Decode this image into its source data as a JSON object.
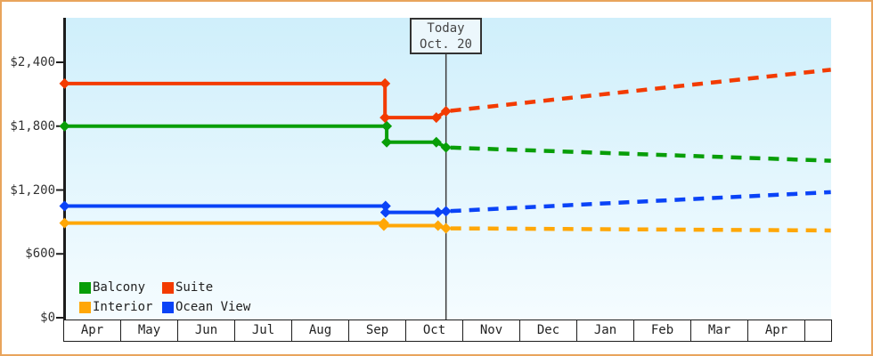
{
  "frame": {
    "border_color": "#e9a45c",
    "bg": "#ffffff"
  },
  "today_box": {
    "line1": "Today",
    "line2": "Oct. 20"
  },
  "legend": {
    "items": [
      {
        "label": "Balcony",
        "color": "#089e08"
      },
      {
        "label": "Suite",
        "color": "#f33b00"
      },
      {
        "label": "Interior",
        "color": "#ffa707"
      },
      {
        "label": "Ocean View",
        "color": "#0a43f7"
      }
    ]
  },
  "chart_data": {
    "type": "line",
    "title": "",
    "x_unit": "months since April 1; today marker at m=6.69 (Oct. 20)",
    "x_categories": [
      "Apr",
      "May",
      "Jun",
      "Jul",
      "Aug",
      "Sep",
      "Oct",
      "Nov",
      "Dec",
      "Jan",
      "Feb",
      "Mar",
      "Apr"
    ],
    "y_ticks": [
      {
        "label": "$0",
        "value": 0
      },
      {
        "label": "$600",
        "value": 600
      },
      {
        "label": "$1,200",
        "value": 1200
      },
      {
        "label": "$1,800",
        "value": 1800
      },
      {
        "label": "$2,400",
        "value": 2400
      }
    ],
    "y_range": [
      0,
      2850
    ],
    "grid": false,
    "legend_position": "bottom-left-inside",
    "plot_bg_top": "#cfeffb",
    "plot_bg_bottom": "#f5fcff",
    "today": {
      "m": 6.69,
      "date_label": "Oct. 20"
    },
    "series": [
      {
        "name": "Interior",
        "color": "#ffa707",
        "solid": [
          [
            0,
            890
          ],
          [
            5.6,
            890
          ],
          [
            5.6,
            865
          ],
          [
            6.55,
            865
          ],
          [
            6.69,
            840
          ]
        ],
        "forecast": [
          [
            6.69,
            840
          ],
          [
            13.44,
            820
          ]
        ]
      },
      {
        "name": "Ocean View",
        "color": "#0a43f7",
        "solid": [
          [
            0,
            1050
          ],
          [
            5.63,
            1050
          ],
          [
            5.63,
            990
          ],
          [
            6.55,
            990
          ],
          [
            6.69,
            1000
          ]
        ],
        "forecast": [
          [
            6.69,
            1000
          ],
          [
            13.44,
            1180
          ]
        ]
      },
      {
        "name": "Balcony",
        "color": "#089e08",
        "solid": [
          [
            0,
            1800
          ],
          [
            5.65,
            1800
          ],
          [
            5.65,
            1650
          ],
          [
            6.52,
            1650
          ],
          [
            6.69,
            1600
          ]
        ],
        "forecast": [
          [
            6.69,
            1600
          ],
          [
            13.44,
            1475
          ]
        ]
      },
      {
        "name": "Suite",
        "color": "#f33b00",
        "solid": [
          [
            0,
            2200
          ],
          [
            5.62,
            2200
          ],
          [
            5.62,
            1880
          ],
          [
            6.52,
            1880
          ],
          [
            6.69,
            1940
          ]
        ],
        "forecast": [
          [
            6.69,
            1940
          ],
          [
            13.44,
            2330
          ]
        ]
      }
    ]
  }
}
